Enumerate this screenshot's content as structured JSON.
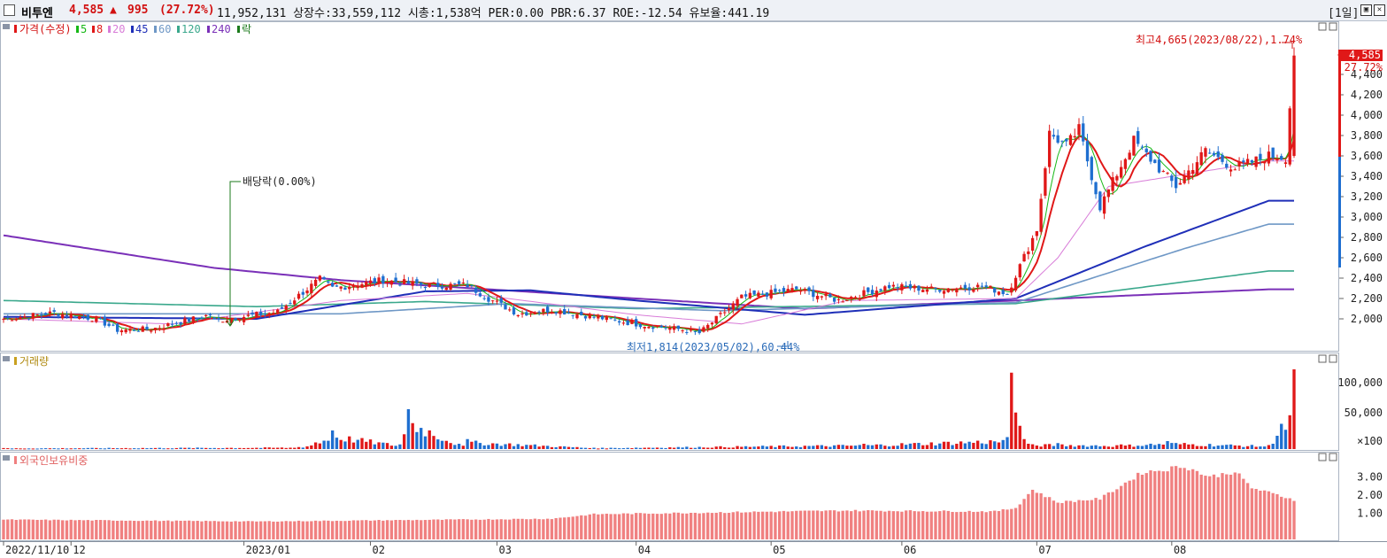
{
  "header": {
    "stock_name": "비투엔",
    "price": "4,585",
    "change_arrow": "▲",
    "change": "995",
    "change_pct": "(27.72%)",
    "stats": "11,952,131  상장수:33,559,112 시총:1,538억  PER:0.00 PBR:6.37 ROE:-12.54 유보율:441.19",
    "period": "[1일]",
    "btn_restore": "▣",
    "btn_close": "✕"
  },
  "price_panel": {
    "legend_title": "가격(수정)",
    "ma_legend": [
      {
        "label": "5",
        "color": "#16b816"
      },
      {
        "label": "8",
        "color": "#e01818"
      },
      {
        "label": "20",
        "color": "#d87cd8"
      },
      {
        "label": "45",
        "color": "#1f2fb8"
      },
      {
        "label": "60",
        "color": "#6f98c6"
      },
      {
        "label": "120",
        "color": "#3aa88c"
      },
      {
        "label": "240",
        "color": "#7a30b8"
      },
      {
        "label": "락",
        "color": "#1b7a1b"
      }
    ],
    "high_annotation": "최고4,665(2023/08/22),1.74%",
    "low_annotation": "최저1,814(2023/05/02),60.44%",
    "dividend_annotation": "배당락(0.00%)",
    "current_price_tag": "4,585",
    "current_pct_tag": "27.72%",
    "y_ticks": [
      "4,400",
      "4,200",
      "4,000",
      "3,800",
      "3,600",
      "3,400",
      "3,200",
      "3,000",
      "2,800",
      "2,600",
      "2,400",
      "2,200",
      "2,000"
    ]
  },
  "volume_panel": {
    "title": "거래량",
    "y_ticks": [
      "100,000",
      "50,000",
      "×100"
    ]
  },
  "foreign_panel": {
    "title": "외국인보유비중",
    "y_ticks": [
      "3.00",
      "2.00",
      "1.00"
    ]
  },
  "x_axis": {
    "labels": [
      "2022/11/10",
      "12",
      "2023/01",
      "02",
      "03",
      "04",
      "05",
      "06",
      "07",
      "08"
    ]
  },
  "colors": {
    "up": "#e01818",
    "down": "#1f6fd0",
    "foreign_bar": "#f08080"
  },
  "chart_data": {
    "type": "candlestick",
    "title": "",
    "ylim": [
      1814,
      4665
    ],
    "price_anchor_days": [
      0,
      12,
      22,
      27,
      35,
      45,
      49,
      50,
      53,
      65,
      75,
      78,
      90,
      100,
      110,
      115,
      122,
      130,
      140,
      150,
      160,
      165,
      175,
      188,
      198,
      210,
      220,
      232,
      238,
      245,
      248,
      252,
      255,
      260,
      268,
      275,
      278,
      285,
      292,
      300,
      304,
      306
    ],
    "price_anchor_close": [
      2000,
      2060,
      2000,
      1890,
      1900,
      2000,
      2040,
      1980,
      2000,
      2070,
      2390,
      2300,
      2380,
      2330,
      2330,
      2200,
      2050,
      2090,
      2020,
      1950,
      1900,
      1860,
      2210,
      2290,
      2180,
      2320,
      2290,
      2320,
      2250,
      2880,
      3820,
      3700,
      3860,
      3100,
      3750,
      3430,
      3300,
      3650,
      3480,
      3600,
      3585,
      4585
    ],
    "ma_lines": [
      {
        "name": "240",
        "days": [
          0,
          50,
          80,
          150,
          190,
          240,
          300
        ],
        "values": [
          2820,
          2500,
          2380,
          2200,
          2100,
          2180,
          2290
        ]
      },
      {
        "name": "120",
        "days": [
          0,
          60,
          100,
          150,
          240,
          300
        ],
        "values": [
          2180,
          2120,
          2170,
          2100,
          2150,
          2470
        ]
      },
      {
        "name": "60",
        "days": [
          0,
          80,
          120,
          170,
          240,
          280,
          300
        ],
        "values": [
          2050,
          2050,
          2150,
          2080,
          2160,
          2690,
          2930
        ]
      },
      {
        "name": "45",
        "days": [
          0,
          60,
          100,
          125,
          150,
          190,
          240,
          270,
          300
        ],
        "values": [
          2020,
          2000,
          2270,
          2280,
          2180,
          2040,
          2200,
          2700,
          3160
        ]
      },
      {
        "name": "20",
        "days": [
          0,
          40,
          80,
          110,
          150,
          175,
          200,
          240,
          250,
          262,
          300
        ],
        "values": [
          2000,
          1950,
          2180,
          2250,
          2040,
          1950,
          2180,
          2200,
          2600,
          3300,
          3550
        ]
      }
    ],
    "volume_anchor_days": [
      0,
      70,
      74,
      78,
      94,
      96,
      109,
      110,
      140,
      204,
      238,
      239,
      240,
      241,
      242,
      243,
      250,
      265,
      276,
      300,
      301,
      302,
      306
    ],
    "volume_anchor_values": [
      1500,
      3000,
      10000,
      28000,
      7000,
      60000,
      5000,
      15000,
      2000,
      8000,
      18000,
      115000,
      55000,
      35000,
      15000,
      8000,
      9000,
      7000,
      12000,
      6000,
      8000,
      20000,
      120000
    ],
    "foreign_anchor_days": [
      0,
      60,
      130,
      140,
      200,
      235,
      240,
      244,
      250,
      260,
      270,
      275,
      280,
      286,
      292,
      296,
      306
    ],
    "foreign_anchor_values": [
      0.65,
      0.55,
      0.7,
      0.95,
      1.15,
      1.1,
      1.3,
      2.3,
      1.6,
      1.8,
      3.25,
      3.4,
      3.6,
      3.0,
      3.3,
      2.4,
      1.75
    ]
  }
}
